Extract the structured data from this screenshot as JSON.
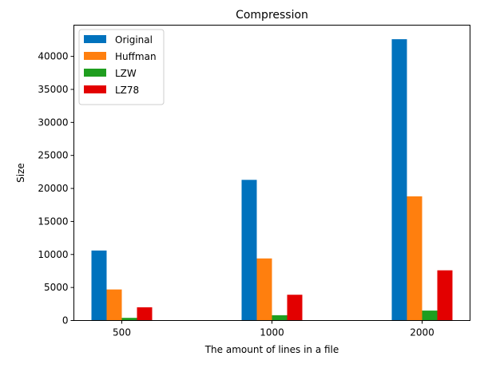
{
  "chart_data": {
    "type": "bar",
    "title": "Compression",
    "xlabel": "The amount of lines in a file",
    "ylabel": "Size",
    "categories": [
      "500",
      "1000",
      "2000"
    ],
    "series": [
      {
        "name": "Original",
        "color": "#0072bd",
        "values": [
          10600,
          21300,
          42600
        ]
      },
      {
        "name": "Huffman",
        "color": "#ff7f0e",
        "values": [
          4700,
          9400,
          18800
        ]
      },
      {
        "name": "LZW",
        "color": "#1f9e1f",
        "values": [
          400,
          800,
          1500
        ]
      },
      {
        "name": "LZ78",
        "color": "#e30000",
        "values": [
          2000,
          3900,
          7600
        ]
      }
    ],
    "ylim": [
      0,
      44730
    ],
    "yticks": [
      0,
      5000,
      10000,
      15000,
      20000,
      25000,
      30000,
      35000,
      40000
    ],
    "grid": false,
    "legend_position": "top-left"
  }
}
